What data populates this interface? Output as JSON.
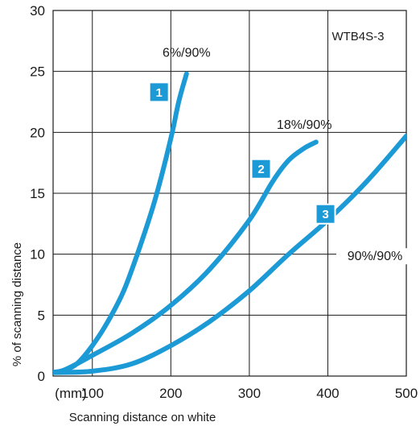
{
  "chart_data": {
    "type": "line",
    "title": "",
    "model_label": "WTB4S-3",
    "xlabel": "Scanning distance on white",
    "x_unit": "(mm)",
    "ylabel": "% of scanning distance",
    "xlim": [
      50,
      500
    ],
    "ylim": [
      0,
      30
    ],
    "x_ticks": [
      100,
      200,
      300,
      400,
      500
    ],
    "y_ticks": [
      0,
      5,
      10,
      15,
      20,
      25,
      30
    ],
    "grid": true,
    "colors": {
      "line": "#1c9ad6",
      "badge": "#1c9ad6",
      "grid": "#1a1a1a"
    },
    "series": [
      {
        "name": "6%/90%",
        "badge": "1",
        "x": [
          40,
          60,
          80,
          100,
          120,
          140,
          160,
          180,
          200,
          210,
          220
        ],
        "y": [
          0.3,
          0.4,
          1.0,
          2.5,
          4.5,
          7.0,
          10.5,
          14.5,
          19.5,
          22.5,
          24.8
        ]
      },
      {
        "name": "18%/90%",
        "badge": "2",
        "x": [
          40,
          60,
          80,
          100,
          150,
          200,
          250,
          300,
          330,
          350,
          370,
          385
        ],
        "y": [
          0.3,
          0.4,
          1.0,
          1.7,
          3.5,
          5.8,
          8.8,
          12.8,
          16.0,
          17.7,
          18.7,
          19.2
        ]
      },
      {
        "name": "90%/90%",
        "badge": "3",
        "x": [
          40,
          60,
          100,
          150,
          200,
          250,
          300,
          350,
          400,
          450,
          500
        ],
        "y": [
          0.3,
          0.3,
          0.4,
          1.0,
          2.5,
          4.5,
          7.0,
          10.0,
          12.8,
          16.0,
          19.7
        ]
      }
    ]
  }
}
